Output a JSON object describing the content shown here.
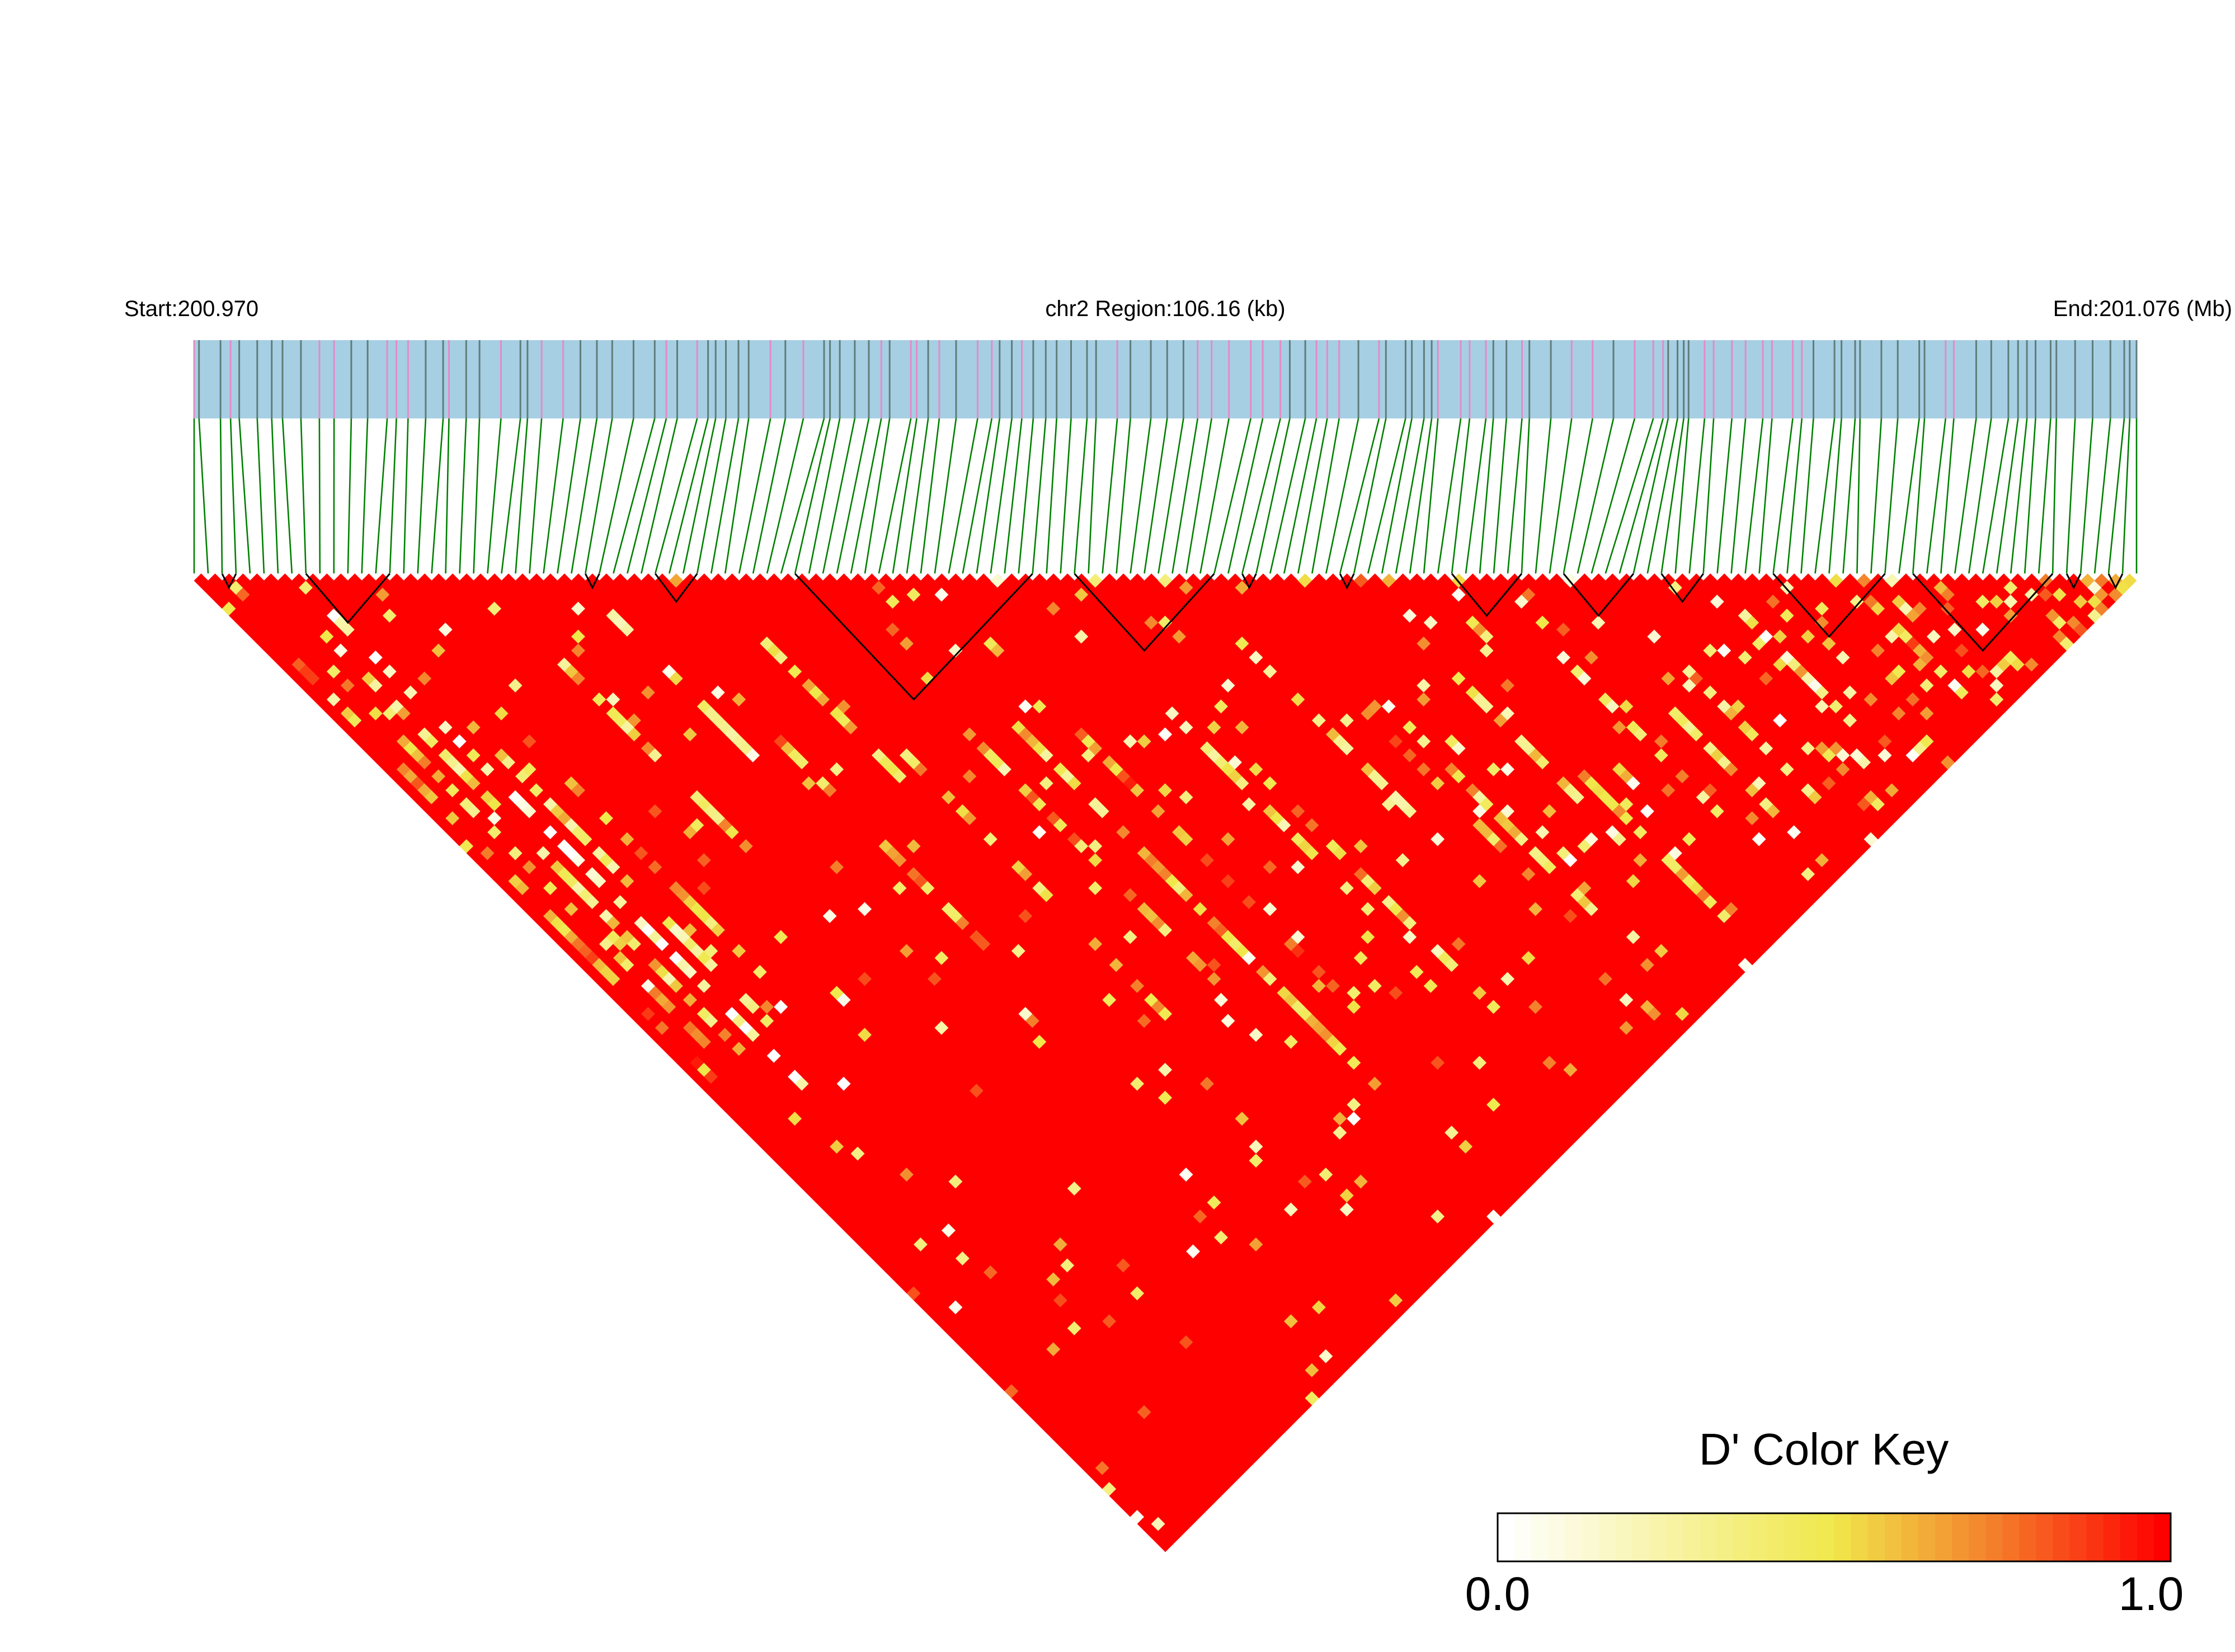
{
  "header": {
    "start_label": "Start:200.970",
    "region_label": "chr2 Region:106.16 (kb)",
    "end_label": "End:201.076 (Mb)"
  },
  "colors": {
    "track_background": "#a6cfe4",
    "marker_line_dark": "#607d7a",
    "marker_line_pink": "#e48bc6",
    "connector_green": "#008000",
    "block_outline": "#000000",
    "ld_high": "#ff0000",
    "ld_mid": "#f0e84a",
    "ld_low": "#ffffff"
  },
  "chart_data": {
    "type": "heatmap",
    "title": "",
    "subtitle": "",
    "chromosome": "chr2",
    "region_start_mb": 200.97,
    "region_end_mb": 201.076,
    "region_length_kb": 106.16,
    "metric": "D'",
    "n_markers": 140,
    "color_key": {
      "title": "D' Color Key",
      "min_label": "0.0",
      "max_label": "1.0",
      "min": 0.0,
      "max": 1.0,
      "stops": [
        {
          "value": 0.0,
          "color": "#ffffff"
        },
        {
          "value": 0.5,
          "color": "#f0e84a"
        },
        {
          "value": 0.75,
          "color": "#f47c2a"
        },
        {
          "value": 1.0,
          "color": "#ff0000"
        }
      ]
    },
    "default_dprime": 1.0,
    "haplotype_blocks": [
      {
        "first": 2,
        "last": 3
      },
      {
        "first": 8,
        "last": 14
      },
      {
        "first": 28,
        "last": 29
      },
      {
        "first": 33,
        "last": 36
      },
      {
        "first": 43,
        "last": 60
      },
      {
        "first": 63,
        "last": 73
      },
      {
        "first": 75,
        "last": 76
      },
      {
        "first": 82,
        "last": 83
      },
      {
        "first": 90,
        "last": 95
      },
      {
        "first": 98,
        "last": 103
      },
      {
        "first": 105,
        "last": 108
      },
      {
        "first": 113,
        "last": 121
      },
      {
        "first": 123,
        "last": 133
      },
      {
        "first": 134,
        "last": 135
      },
      {
        "first": 137,
        "last": 138
      }
    ],
    "low_ld_streaks": [
      {
        "i": 2,
        "j": 4,
        "len": 4,
        "value": 0.6
      },
      {
        "i": 3,
        "j": 15,
        "len": 60,
        "value": 0.55
      },
      {
        "i": 5,
        "j": 20,
        "len": 55,
        "value": 0.45
      },
      {
        "i": 1,
        "j": 10,
        "len": 64,
        "value": 0.7
      },
      {
        "i": 7,
        "j": 11,
        "len": 70,
        "value": 0.1
      },
      {
        "i": 9,
        "j": 29,
        "len": 45,
        "value": 0.4
      },
      {
        "i": 12,
        "j": 30,
        "len": 40,
        "value": 0.6
      },
      {
        "i": 20,
        "j": 33,
        "len": 30,
        "value": 0.5
      },
      {
        "i": 27,
        "j": 32,
        "len": 25,
        "value": 0.3
      },
      {
        "i": 30,
        "j": 50,
        "len": 35,
        "value": 0.65
      },
      {
        "i": 36,
        "j": 46,
        "len": 20,
        "value": 0.45
      },
      {
        "i": 38,
        "j": 62,
        "len": 40,
        "value": 0.55
      },
      {
        "i": 44,
        "j": 64,
        "len": 45,
        "value": 0.6
      },
      {
        "i": 48,
        "j": 70,
        "len": 50,
        "value": 0.5
      },
      {
        "i": 52,
        "j": 75,
        "len": 40,
        "value": 0.7
      },
      {
        "i": 60,
        "j": 78,
        "len": 30,
        "value": 0.35
      },
      {
        "i": 62,
        "j": 90,
        "len": 35,
        "value": 0.6
      },
      {
        "i": 70,
        "j": 80,
        "len": 25,
        "value": 0.4
      },
      {
        "i": 74,
        "j": 92,
        "len": 28,
        "value": 0.65
      },
      {
        "i": 76,
        "j": 100,
        "len": 25,
        "value": 0.5
      },
      {
        "i": 83,
        "j": 98,
        "len": 30,
        "value": 0.45
      },
      {
        "i": 85,
        "j": 110,
        "len": 22,
        "value": 0.6
      },
      {
        "i": 92,
        "j": 104,
        "len": 26,
        "value": 0.35
      },
      {
        "i": 96,
        "j": 116,
        "len": 18,
        "value": 0.55
      },
      {
        "i": 100,
        "j": 114,
        "len": 20,
        "value": 0.4
      },
      {
        "i": 104,
        "j": 125,
        "len": 15,
        "value": 0.6
      },
      {
        "i": 108,
        "j": 113,
        "len": 22,
        "value": 0.2
      },
      {
        "i": 112,
        "j": 130,
        "len": 10,
        "value": 0.5
      },
      {
        "i": 118,
        "j": 122,
        "len": 15,
        "value": 0.65
      },
      {
        "i": 122,
        "j": 136,
        "len": 5,
        "value": 0.4
      }
    ],
    "scattered_cell_seed": 7,
    "scattered_cell_count": 420
  }
}
